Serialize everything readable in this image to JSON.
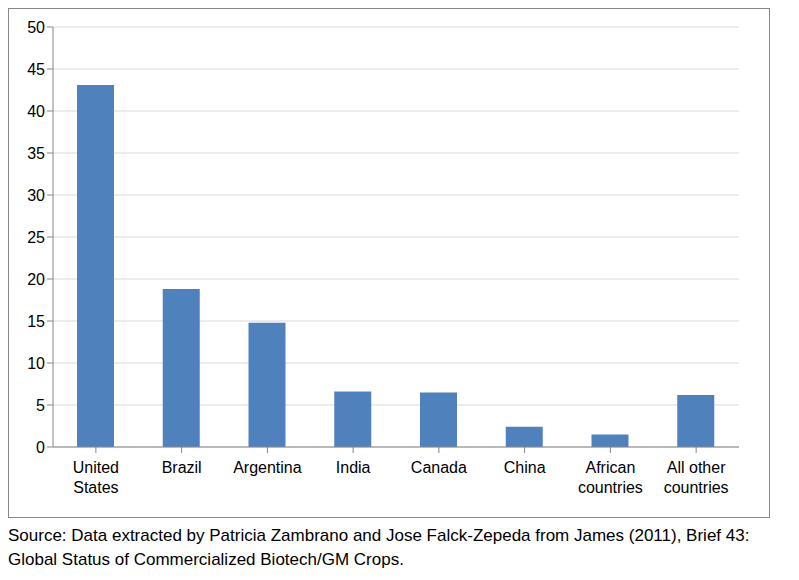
{
  "chart_data": {
    "type": "bar",
    "categories": [
      "United States",
      "Brazil",
      "Argentina",
      "India",
      "Canada",
      "China",
      "African countries",
      "All other countries"
    ],
    "values": [
      43.1,
      18.8,
      14.8,
      6.6,
      6.5,
      2.4,
      1.5,
      6.2
    ],
    "color": "#4f81bd",
    "ylim": [
      0,
      50
    ],
    "yticks": [
      0,
      5,
      10,
      15,
      20,
      25,
      30,
      35,
      40,
      45,
      50
    ],
    "grid": true,
    "annotations": [
      "Source: Data extracted by Patricia Zambrano and Jose Falck-Zepeda from James (2011), Brief 43: Global Status of Commercialized Biotech/GM Crops."
    ]
  }
}
